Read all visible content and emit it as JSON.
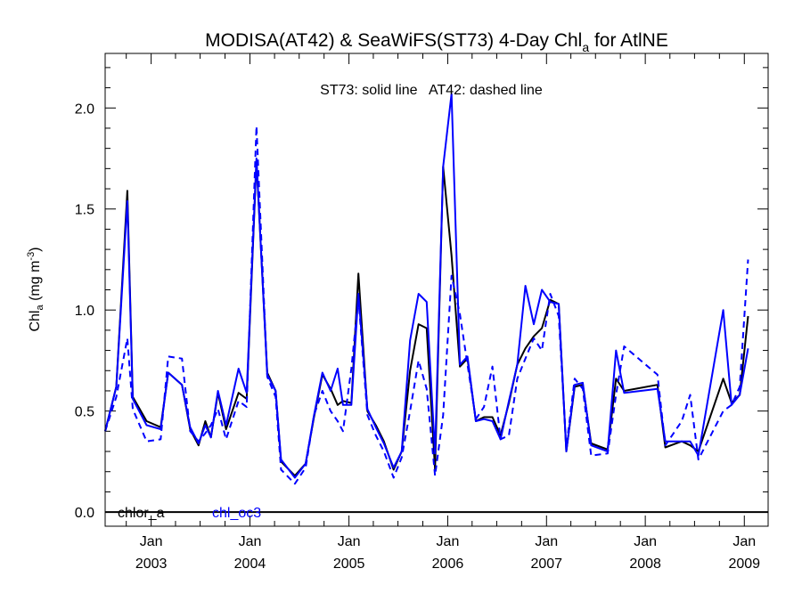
{
  "chart_data": {
    "type": "line",
    "title": "MODISA(AT42) & SeaWiFS(ST73) 4-Day Chl",
    "title_subscript": "a",
    "title_suffix": " for AtlNE",
    "ylabel": "Chl",
    "ylabel_subscript": "a",
    "ylabel_unit_prefix": " (mg m",
    "ylabel_unit_superscript": "-3",
    "ylabel_unit_suffix": ")",
    "annotation": "ST73: solid line   AT42: dashed line",
    "ylim": [
      -0.07,
      2.27
    ],
    "xlim": [
      "2002-07-15",
      "2009-03-30"
    ],
    "y_ticks": [
      0.0,
      0.5,
      1.0,
      1.5,
      2.0
    ],
    "y_tick_labels": [
      "0.0",
      "0.5",
      "1.0",
      "1.5",
      "2.0"
    ],
    "x_ticks": [
      "2003-01-01",
      "2004-01-01",
      "2005-01-01",
      "2006-01-01",
      "2007-01-01",
      "2008-01-01",
      "2009-01-01"
    ],
    "x_tick_labels_month": [
      "Jan",
      "Jan",
      "Jan",
      "Jan",
      "Jan",
      "Jan",
      "Jan"
    ],
    "x_tick_labels_year": [
      "2003",
      "2004",
      "2005",
      "2006",
      "2007",
      "2008",
      "2009"
    ],
    "legend_labels": [
      "chlor_a",
      "chl_oc3"
    ],
    "reference_line_y": 0.0,
    "series": [
      {
        "product": "chlor_a",
        "sensor": "ST73",
        "line_style": "solid",
        "color": "#000000",
        "points": [
          [
            "2002-07-15",
            0.4
          ],
          [
            "2002-08-25",
            0.62
          ],
          [
            "2002-10-05",
            1.59
          ],
          [
            "2002-10-25",
            0.57
          ],
          [
            "2002-12-15",
            0.45
          ],
          [
            "2003-02-05",
            0.42
          ],
          [
            "2003-03-05",
            0.69
          ],
          [
            "2003-04-25",
            0.63
          ],
          [
            "2003-05-25",
            0.41
          ],
          [
            "2003-06-25",
            0.33
          ],
          [
            "2003-07-20",
            0.45
          ],
          [
            "2003-08-10",
            0.37
          ],
          [
            "2003-09-05",
            0.59
          ],
          [
            "2003-10-05",
            0.41
          ],
          [
            "2003-11-20",
            0.59
          ],
          [
            "2003-12-20",
            0.56
          ],
          [
            "2004-01-25",
            1.74
          ],
          [
            "2004-03-05",
            0.69
          ],
          [
            "2004-04-05",
            0.6
          ],
          [
            "2004-04-25",
            0.25
          ],
          [
            "2004-06-15",
            0.18
          ],
          [
            "2004-07-25",
            0.24
          ],
          [
            "2004-08-25",
            0.47
          ],
          [
            "2004-09-25",
            0.68
          ],
          [
            "2004-10-25",
            0.61
          ],
          [
            "2004-11-20",
            0.53
          ],
          [
            "2004-12-10",
            0.55
          ],
          [
            "2005-01-10",
            0.54
          ],
          [
            "2005-02-05",
            1.18
          ],
          [
            "2005-03-10",
            0.5
          ],
          [
            "2005-04-10",
            0.43
          ],
          [
            "2005-05-10",
            0.35
          ],
          [
            "2005-06-15",
            0.21
          ],
          [
            "2005-07-15",
            0.3
          ],
          [
            "2005-08-15",
            0.7
          ],
          [
            "2005-09-15",
            0.93
          ],
          [
            "2005-10-15",
            0.91
          ],
          [
            "2005-11-15",
            0.21
          ],
          [
            "2005-12-15",
            1.71
          ],
          [
            "2006-01-15",
            1.27
          ],
          [
            "2006-02-15",
            0.72
          ],
          [
            "2006-03-15",
            0.76
          ],
          [
            "2006-04-15",
            0.45
          ],
          [
            "2006-05-15",
            0.47
          ],
          [
            "2006-06-15",
            0.47
          ],
          [
            "2006-07-15",
            0.38
          ],
          [
            "2006-08-15",
            0.54
          ],
          [
            "2006-09-15",
            0.73
          ],
          [
            "2006-10-15",
            0.81
          ],
          [
            "2006-11-15",
            0.87
          ],
          [
            "2006-12-15",
            0.91
          ],
          [
            "2007-01-15",
            1.05
          ],
          [
            "2007-02-15",
            1.03
          ],
          [
            "2007-03-15",
            0.3
          ],
          [
            "2007-04-15",
            0.62
          ],
          [
            "2007-05-15",
            0.63
          ],
          [
            "2007-06-15",
            0.34
          ],
          [
            "2007-08-15",
            0.31
          ],
          [
            "2007-09-15",
            0.66
          ],
          [
            "2007-10-15",
            0.6
          ],
          [
            "2008-02-15",
            0.63
          ],
          [
            "2008-03-15",
            0.32
          ],
          [
            "2008-05-15",
            0.35
          ],
          [
            "2008-06-15",
            0.33
          ],
          [
            "2008-07-15",
            0.3
          ],
          [
            "2008-10-15",
            0.66
          ],
          [
            "2008-11-15",
            0.54
          ],
          [
            "2008-12-15",
            0.58
          ],
          [
            "2009-01-15",
            0.97
          ]
        ]
      },
      {
        "product": "chl_oc3",
        "sensor": "ST73",
        "line_style": "solid",
        "color": "#0000ff",
        "points": [
          [
            "2002-07-15",
            0.4
          ],
          [
            "2002-08-25",
            0.62
          ],
          [
            "2002-10-05",
            1.54
          ],
          [
            "2002-10-25",
            0.56
          ],
          [
            "2002-12-15",
            0.43
          ],
          [
            "2003-02-05",
            0.41
          ],
          [
            "2003-03-05",
            0.69
          ],
          [
            "2003-04-25",
            0.63
          ],
          [
            "2003-05-25",
            0.42
          ],
          [
            "2003-06-25",
            0.34
          ],
          [
            "2003-07-20",
            0.43
          ],
          [
            "2003-08-10",
            0.37
          ],
          [
            "2003-09-05",
            0.6
          ],
          [
            "2003-10-05",
            0.43
          ],
          [
            "2003-11-20",
            0.71
          ],
          [
            "2003-12-20",
            0.59
          ],
          [
            "2004-01-25",
            1.75
          ],
          [
            "2004-03-05",
            0.68
          ],
          [
            "2004-04-05",
            0.6
          ],
          [
            "2004-04-25",
            0.26
          ],
          [
            "2004-06-15",
            0.17
          ],
          [
            "2004-07-25",
            0.24
          ],
          [
            "2004-08-25",
            0.48
          ],
          [
            "2004-09-25",
            0.69
          ],
          [
            "2004-10-25",
            0.6
          ],
          [
            "2004-11-20",
            0.71
          ],
          [
            "2004-12-10",
            0.53
          ],
          [
            "2005-01-10",
            0.53
          ],
          [
            "2005-02-05",
            1.08
          ],
          [
            "2005-03-10",
            0.51
          ],
          [
            "2005-04-10",
            0.42
          ],
          [
            "2005-05-10",
            0.34
          ],
          [
            "2005-06-15",
            0.22
          ],
          [
            "2005-07-15",
            0.3
          ],
          [
            "2005-08-15",
            0.85
          ],
          [
            "2005-09-15",
            1.08
          ],
          [
            "2005-10-15",
            1.04
          ],
          [
            "2005-11-15",
            0.29
          ],
          [
            "2005-12-15",
            1.71
          ],
          [
            "2006-01-15",
            2.07
          ],
          [
            "2006-02-15",
            0.73
          ],
          [
            "2006-03-15",
            0.77
          ],
          [
            "2006-04-15",
            0.45
          ],
          [
            "2006-05-15",
            0.46
          ],
          [
            "2006-06-15",
            0.45
          ],
          [
            "2006-07-15",
            0.36
          ],
          [
            "2006-08-15",
            0.55
          ],
          [
            "2006-09-15",
            0.73
          ],
          [
            "2006-10-15",
            1.12
          ],
          [
            "2006-11-15",
            0.93
          ],
          [
            "2006-12-15",
            1.1
          ],
          [
            "2007-01-15",
            1.04
          ],
          [
            "2007-02-15",
            1.03
          ],
          [
            "2007-03-15",
            0.3
          ],
          [
            "2007-04-15",
            0.63
          ],
          [
            "2007-05-15",
            0.64
          ],
          [
            "2007-06-15",
            0.33
          ],
          [
            "2007-08-15",
            0.3
          ],
          [
            "2007-09-15",
            0.8
          ],
          [
            "2007-10-15",
            0.59
          ],
          [
            "2008-02-15",
            0.61
          ],
          [
            "2008-03-15",
            0.35
          ],
          [
            "2008-05-15",
            0.35
          ],
          [
            "2008-06-15",
            0.35
          ],
          [
            "2008-07-15",
            0.28
          ],
          [
            "2008-10-15",
            1.0
          ],
          [
            "2008-11-15",
            0.53
          ],
          [
            "2008-12-15",
            0.58
          ],
          [
            "2009-01-15",
            0.81
          ]
        ]
      },
      {
        "product": "chl_oc3",
        "sensor": "AT42",
        "line_style": "dashed",
        "color": "#0000ff",
        "points": [
          [
            "2002-07-15",
            0.4
          ],
          [
            "2002-08-25",
            0.57
          ],
          [
            "2002-10-05",
            0.86
          ],
          [
            "2002-10-25",
            0.51
          ],
          [
            "2002-12-15",
            0.35
          ],
          [
            "2003-02-05",
            0.36
          ],
          [
            "2003-03-05",
            0.77
          ],
          [
            "2003-04-25",
            0.76
          ],
          [
            "2003-05-25",
            0.4
          ],
          [
            "2003-06-25",
            0.35
          ],
          [
            "2003-07-20",
            0.39
          ],
          [
            "2003-08-10",
            0.43
          ],
          [
            "2003-09-05",
            0.51
          ],
          [
            "2003-10-05",
            0.36
          ],
          [
            "2003-11-20",
            0.55
          ],
          [
            "2003-12-20",
            0.52
          ],
          [
            "2004-01-25",
            1.91
          ],
          [
            "2004-03-05",
            0.67
          ],
          [
            "2004-04-05",
            0.57
          ],
          [
            "2004-04-25",
            0.21
          ],
          [
            "2004-06-15",
            0.14
          ],
          [
            "2004-07-25",
            0.22
          ],
          [
            "2004-08-25",
            0.48
          ],
          [
            "2004-09-25",
            0.6
          ],
          [
            "2004-10-25",
            0.5
          ],
          [
            "2004-11-20",
            0.45
          ],
          [
            "2004-12-10",
            0.4
          ],
          [
            "2005-01-10",
            0.71
          ],
          [
            "2005-02-05",
            1.06
          ],
          [
            "2005-03-10",
            0.48
          ],
          [
            "2005-04-10",
            0.38
          ],
          [
            "2005-05-10",
            0.3
          ],
          [
            "2005-06-15",
            0.17
          ],
          [
            "2005-07-15",
            0.27
          ],
          [
            "2005-08-15",
            0.5
          ],
          [
            "2005-09-15",
            0.75
          ],
          [
            "2005-10-15",
            0.61
          ],
          [
            "2005-11-15",
            0.18
          ],
          [
            "2005-12-15",
            0.48
          ],
          [
            "2006-01-15",
            1.17
          ],
          [
            "2006-02-15",
            0.98
          ],
          [
            "2006-03-15",
            0.73
          ],
          [
            "2006-04-15",
            0.46
          ],
          [
            "2006-05-15",
            0.52
          ],
          [
            "2006-06-15",
            0.72
          ],
          [
            "2006-07-15",
            0.36
          ],
          [
            "2006-08-15",
            0.38
          ],
          [
            "2006-09-15",
            0.66
          ],
          [
            "2006-10-15",
            0.76
          ],
          [
            "2006-11-15",
            0.86
          ],
          [
            "2006-12-15",
            0.8
          ],
          [
            "2007-01-15",
            1.08
          ],
          [
            "2007-02-15",
            0.97
          ],
          [
            "2007-03-15",
            0.32
          ],
          [
            "2007-04-15",
            0.66
          ],
          [
            "2007-05-15",
            0.61
          ],
          [
            "2007-06-15",
            0.28
          ],
          [
            "2007-08-15",
            0.29
          ],
          [
            "2007-09-15",
            0.58
          ],
          [
            "2007-10-15",
            0.82
          ],
          [
            "2008-02-15",
            0.68
          ],
          [
            "2008-03-15",
            0.33
          ],
          [
            "2008-05-15",
            0.45
          ],
          [
            "2008-06-15",
            0.58
          ],
          [
            "2008-07-15",
            0.26
          ],
          [
            "2008-10-15",
            0.5
          ],
          [
            "2008-11-15",
            0.53
          ],
          [
            "2008-12-15",
            0.62
          ],
          [
            "2009-01-15",
            1.25
          ]
        ]
      }
    ]
  }
}
